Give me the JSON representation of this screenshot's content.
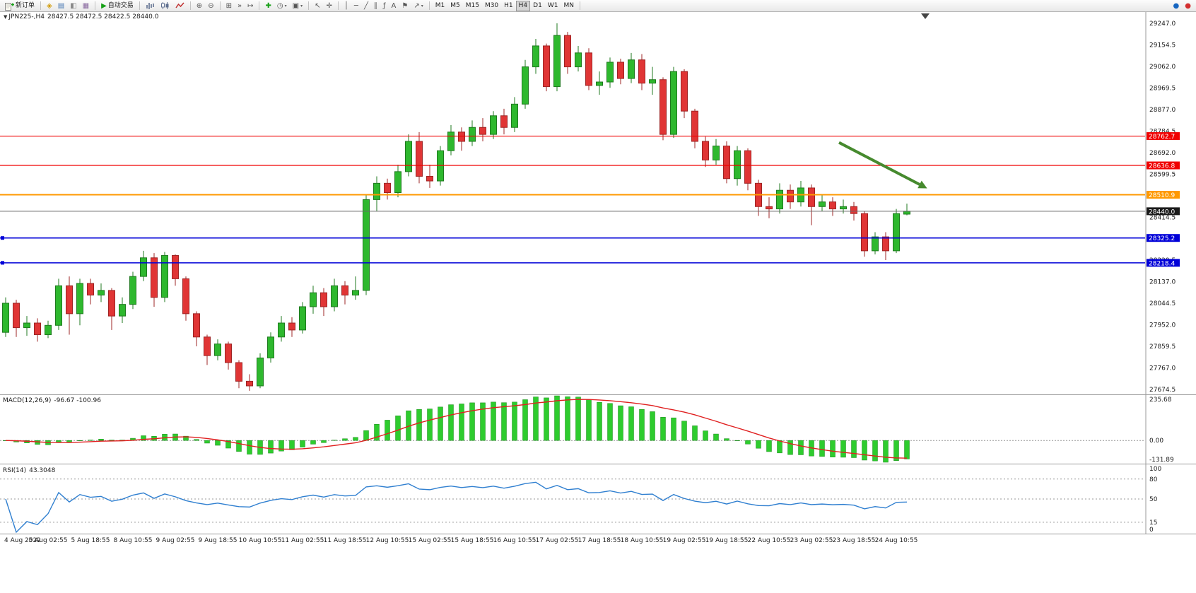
{
  "toolbar": {
    "groups": [
      {
        "items": [
          {
            "name": "new-order-button",
            "svg": "doc-plus",
            "label": "新订单"
          }
        ]
      },
      {
        "items": [
          {
            "name": "metaeditor-button",
            "glyph": "◈",
            "color": "#d19a00"
          },
          {
            "name": "market-watch-button",
            "glyph": "▤",
            "color": "#4a7ab5"
          },
          {
            "name": "navigator-button",
            "glyph": "◧",
            "color": "#888888"
          },
          {
            "name": "terminal-button",
            "glyph": "▦",
            "color": "#8a6aa0"
          }
        ]
      },
      {
        "items": [
          {
            "name": "auto-trading-button",
            "glyph": "▶",
            "color": "#17a017",
            "label": "自动交易"
          }
        ]
      },
      {
        "items": [
          {
            "name": "bar-chart-button",
            "svg": "bars"
          },
          {
            "name": "candlestick-chart-button",
            "svg": "candle"
          },
          {
            "name": "line-chart-button",
            "svg": "zigzag"
          }
        ]
      },
      {
        "items": [
          {
            "name": "zoom-in-button",
            "glyph": "⊕"
          },
          {
            "name": "zoom-out-button",
            "glyph": "⊖"
          }
        ]
      },
      {
        "items": [
          {
            "name": "tile-windows-button",
            "glyph": "⊞"
          },
          {
            "name": "auto-scroll-button",
            "glyph": "»"
          },
          {
            "name": "chart-shift-button",
            "glyph": "↦"
          }
        ]
      },
      {
        "items": [
          {
            "name": "indicators-button",
            "glyph": "✚",
            "color": "#17a017"
          },
          {
            "name": "periods-button",
            "glyph": "◷",
            "caret": true
          },
          {
            "name": "templates-button",
            "glyph": "▣",
            "caret": true
          }
        ]
      },
      {
        "items": [
          {
            "name": "cursor-button",
            "glyph": "↖"
          },
          {
            "name": "crosshair-button",
            "glyph": "✛"
          }
        ]
      },
      {
        "items": [
          {
            "name": "vertical-line-button",
            "glyph": "│"
          },
          {
            "name": "horizontal-line-button",
            "glyph": "─"
          },
          {
            "name": "trendline-button",
            "glyph": "╱"
          },
          {
            "name": "channel-button",
            "glyph": "∥"
          },
          {
            "name": "fibonacci-button",
            "glyph": "ƒ"
          },
          {
            "name": "text-button",
            "glyph": "A"
          },
          {
            "name": "label-button",
            "glyph": "⚑"
          },
          {
            "name": "arrows-button",
            "glyph": "↗",
            "caret": true
          }
        ]
      },
      {
        "type": "timeframes",
        "items": [
          {
            "name": "timeframe-m1-button",
            "label": "M1"
          },
          {
            "name": "timeframe-m5-button",
            "label": "M5"
          },
          {
            "name": "timeframe-m15-button",
            "label": "M15"
          },
          {
            "name": "timeframe-m30-button",
            "label": "M30"
          },
          {
            "name": "timeframe-h1-button",
            "label": "H1"
          },
          {
            "name": "timeframe-h4-button",
            "label": "H4",
            "active": true
          },
          {
            "name": "timeframe-d1-button",
            "label": "D1"
          },
          {
            "name": "timeframe-w1-button",
            "label": "W1"
          },
          {
            "name": "timeframe-mn-button",
            "label": "MN"
          }
        ]
      },
      {
        "align": "right",
        "items": [
          {
            "name": "community-button",
            "glyph": "●",
            "color": "#1565c0"
          },
          {
            "name": "record-button",
            "glyph": "●",
            "color": "#d32f2f"
          }
        ]
      }
    ]
  },
  "chart": {
    "title_symbol": "JPN225-,H4",
    "title_ohlc": "28427.5 28472.5 28422.5 28440.0"
  },
  "indicators": {
    "macd": {
      "label": "MACD(12,26,9)",
      "values": "-96.67 -100.96",
      "fast": 12,
      "slow": 26,
      "signal": 9,
      "scale": [
        "235.68",
        "0.00",
        "-131.89"
      ]
    },
    "rsi": {
      "label": "RSI(14)",
      "value": "43.3048",
      "period": 14,
      "scale": [
        "100",
        "80",
        "50",
        "15",
        "0"
      ],
      "levels": [
        80,
        50,
        15
      ]
    }
  },
  "chart_data": {
    "type": "candlestick",
    "symbol": "JPN225-",
    "timeframe": "H4",
    "ohlc_current": {
      "open": 28427.5,
      "high": 28472.5,
      "low": 28422.5,
      "close": 28440.0
    },
    "price_axis": {
      "domain_max": 29295.5,
      "domain_min": 27653.5,
      "step": 92.5,
      "labels": [
        "29247.0",
        "29154.5",
        "29062.0",
        "28969.5",
        "28877.0",
        "28784.5",
        "28692.0",
        "28599.5",
        "28507.0",
        "28414.5",
        "28322.0",
        "28229.5",
        "28137.0",
        "28044.5",
        "27952.0",
        "27859.5",
        "27767.0",
        "27674.5"
      ]
    },
    "candles": [
      [
        27920,
        28070,
        27900,
        28045
      ],
      [
        28045,
        28060,
        27900,
        27940
      ],
      [
        27940,
        27990,
        27905,
        27960
      ],
      [
        27960,
        27980,
        27880,
        27910
      ],
      [
        27910,
        27970,
        27895,
        27950
      ],
      [
        27950,
        28150,
        27930,
        28120
      ],
      [
        28120,
        28160,
        27910,
        28000
      ],
      [
        28000,
        28150,
        27950,
        28130
      ],
      [
        28130,
        28150,
        28040,
        28080
      ],
      [
        28080,
        28130,
        28050,
        28100
      ],
      [
        28100,
        28110,
        27930,
        27990
      ],
      [
        27990,
        28070,
        27960,
        28040
      ],
      [
        28040,
        28180,
        28020,
        28160
      ],
      [
        28160,
        28270,
        28140,
        28240
      ],
      [
        28240,
        28260,
        28030,
        28070
      ],
      [
        28070,
        28265,
        28050,
        28250
      ],
      [
        28250,
        28255,
        28120,
        28150
      ],
      [
        28150,
        28160,
        27970,
        28000
      ],
      [
        28000,
        28010,
        27860,
        27900
      ],
      [
        27900,
        27910,
        27780,
        27820
      ],
      [
        27820,
        27890,
        27800,
        27870
      ],
      [
        27870,
        27880,
        27760,
        27790
      ],
      [
        27790,
        27800,
        27680,
        27710
      ],
      [
        27710,
        27740,
        27669,
        27690
      ],
      [
        27690,
        27830,
        27680,
        27810
      ],
      [
        27810,
        27920,
        27790,
        27900
      ],
      [
        27900,
        27990,
        27880,
        27960
      ],
      [
        27960,
        27985,
        27900,
        27930
      ],
      [
        27930,
        28050,
        27915,
        28030
      ],
      [
        28030,
        28120,
        28000,
        28090
      ],
      [
        28090,
        28110,
        27990,
        28030
      ],
      [
        28030,
        28150,
        28010,
        28120
      ],
      [
        28120,
        28140,
        28040,
        28080
      ],
      [
        28080,
        28160,
        28060,
        28100
      ],
      [
        28100,
        28510,
        28080,
        28490
      ],
      [
        28490,
        28590,
        28440,
        28560
      ],
      [
        28560,
        28580,
        28490,
        28520
      ],
      [
        28520,
        28640,
        28500,
        28610
      ],
      [
        28610,
        28770,
        28590,
        28740
      ],
      [
        28740,
        28780,
        28560,
        28590
      ],
      [
        28590,
        28640,
        28540,
        28570
      ],
      [
        28570,
        28720,
        28550,
        28700
      ],
      [
        28700,
        28810,
        28680,
        28780
      ],
      [
        28780,
        28800,
        28700,
        28740
      ],
      [
        28740,
        28830,
        28720,
        28800
      ],
      [
        28800,
        28840,
        28740,
        28770
      ],
      [
        28770,
        28870,
        28750,
        28850
      ],
      [
        28850,
        28880,
        28770,
        28800
      ],
      [
        28800,
        28930,
        28780,
        28900
      ],
      [
        28900,
        29090,
        28880,
        29060
      ],
      [
        29060,
        29180,
        29030,
        29150
      ],
      [
        29150,
        29160,
        28955,
        28975
      ],
      [
        28975,
        29247,
        28955,
        29195
      ],
      [
        29195,
        29210,
        29030,
        29060
      ],
      [
        29060,
        29150,
        29040,
        29120
      ],
      [
        29120,
        29140,
        28960,
        28980
      ],
      [
        28980,
        29040,
        28940,
        28995
      ],
      [
        28995,
        29100,
        28970,
        29080
      ],
      [
        29080,
        29095,
        28985,
        29010
      ],
      [
        29010,
        29120,
        28990,
        29090
      ],
      [
        29090,
        29115,
        28960,
        28990
      ],
      [
        28990,
        29060,
        28940,
        29005
      ],
      [
        29005,
        29015,
        28745,
        28770
      ],
      [
        28770,
        29060,
        28755,
        29040
      ],
      [
        29040,
        29050,
        28840,
        28870
      ],
      [
        28870,
        28880,
        28710,
        28740
      ],
      [
        28740,
        28760,
        28630,
        28660
      ],
      [
        28660,
        28750,
        28640,
        28720
      ],
      [
        28720,
        28740,
        28560,
        28580
      ],
      [
        28580,
        28720,
        28550,
        28700
      ],
      [
        28700,
        28710,
        28530,
        28560
      ],
      [
        28560,
        28575,
        28420,
        28460
      ],
      [
        28460,
        28500,
        28410,
        28450
      ],
      [
        28450,
        28560,
        28430,
        28530
      ],
      [
        28530,
        28555,
        28450,
        28480
      ],
      [
        28480,
        28570,
        28460,
        28540
      ],
      [
        28540,
        28555,
        28380,
        28460
      ],
      [
        28460,
        28510,
        28440,
        28480
      ],
      [
        28480,
        28500,
        28420,
        28450
      ],
      [
        28450,
        28490,
        28430,
        28460
      ],
      [
        28460,
        28480,
        28400,
        28430
      ],
      [
        28430,
        28440,
        28245,
        28270
      ],
      [
        28270,
        28350,
        28255,
        28330
      ],
      [
        28330,
        28350,
        28230,
        28270
      ],
      [
        28270,
        28450,
        28260,
        28430
      ],
      [
        28427.5,
        28472.5,
        28422.5,
        28440.0
      ]
    ],
    "time_labels": [
      {
        "i": 0,
        "t": "4 Aug 2022"
      },
      {
        "i": 4,
        "t": "5 Aug 02:55"
      },
      {
        "i": 8,
        "t": "5 Aug 18:55"
      },
      {
        "i": 12,
        "t": "8 Aug 10:55"
      },
      {
        "i": 16,
        "t": "9 Aug 02:55"
      },
      {
        "i": 20,
        "t": "9 Aug 18:55"
      },
      {
        "i": 24,
        "t": "10 Aug 10:55"
      },
      {
        "i": 28,
        "t": "11 Aug 02:55"
      },
      {
        "i": 32,
        "t": "11 Aug 18:55"
      },
      {
        "i": 36,
        "t": "12 Aug 10:55"
      },
      {
        "i": 40,
        "t": "15 Aug 02:55"
      },
      {
        "i": 44,
        "t": "15 Aug 18:55"
      },
      {
        "i": 48,
        "t": "16 Aug 10:55"
      },
      {
        "i": 52,
        "t": "17 Aug 02:55"
      },
      {
        "i": 56,
        "t": "17 Aug 18:55"
      },
      {
        "i": 60,
        "t": "18 Aug 10:55"
      },
      {
        "i": 64,
        "t": "19 Aug 02:55"
      },
      {
        "i": 68,
        "t": "19 Aug 18:55"
      },
      {
        "i": 72,
        "t": "22 Aug 10:55"
      },
      {
        "i": 76,
        "t": "23 Aug 02:55"
      },
      {
        "i": 80,
        "t": "23 Aug 18:55"
      },
      {
        "i": 84,
        "t": "24 Aug 10:55"
      }
    ],
    "levels": [
      {
        "name": "resistance-1",
        "price": 28762.7,
        "color": "#f00000",
        "width": 1.2
      },
      {
        "name": "resistance-2",
        "price": 28636.8,
        "color": "#f00000",
        "width": 1.2
      },
      {
        "name": "pivot",
        "price": 28510.9,
        "color": "#ff9900",
        "width": 2
      },
      {
        "name": "current-price",
        "price": 28440.0,
        "color": "#6a6a6a",
        "width": 1,
        "badge": "#1a1a1a"
      },
      {
        "name": "support-1",
        "price": 28325.2,
        "color": "#0000d8",
        "width": 1.6,
        "handles": true
      },
      {
        "name": "support-2",
        "price": 28218.4,
        "color": "#0000d8",
        "width": 1.6,
        "handles": true
      }
    ],
    "arrow_annotation": {
      "from_index": 78.6,
      "from_price": 28735,
      "to_index": 86.2,
      "to_price": 28555,
      "color": "#468a2e",
      "width": 4
    },
    "colors": {
      "up": "#2eb82e",
      "up_border": "#1f7a1f",
      "down": "#e03535",
      "down_border": "#9e2424",
      "macd_histogram": "#2ecc2e",
      "macd_histogram_border": "#1d8a1d",
      "macd_signal": "#e02020",
      "rsi_line": "#2f7fd0"
    }
  }
}
